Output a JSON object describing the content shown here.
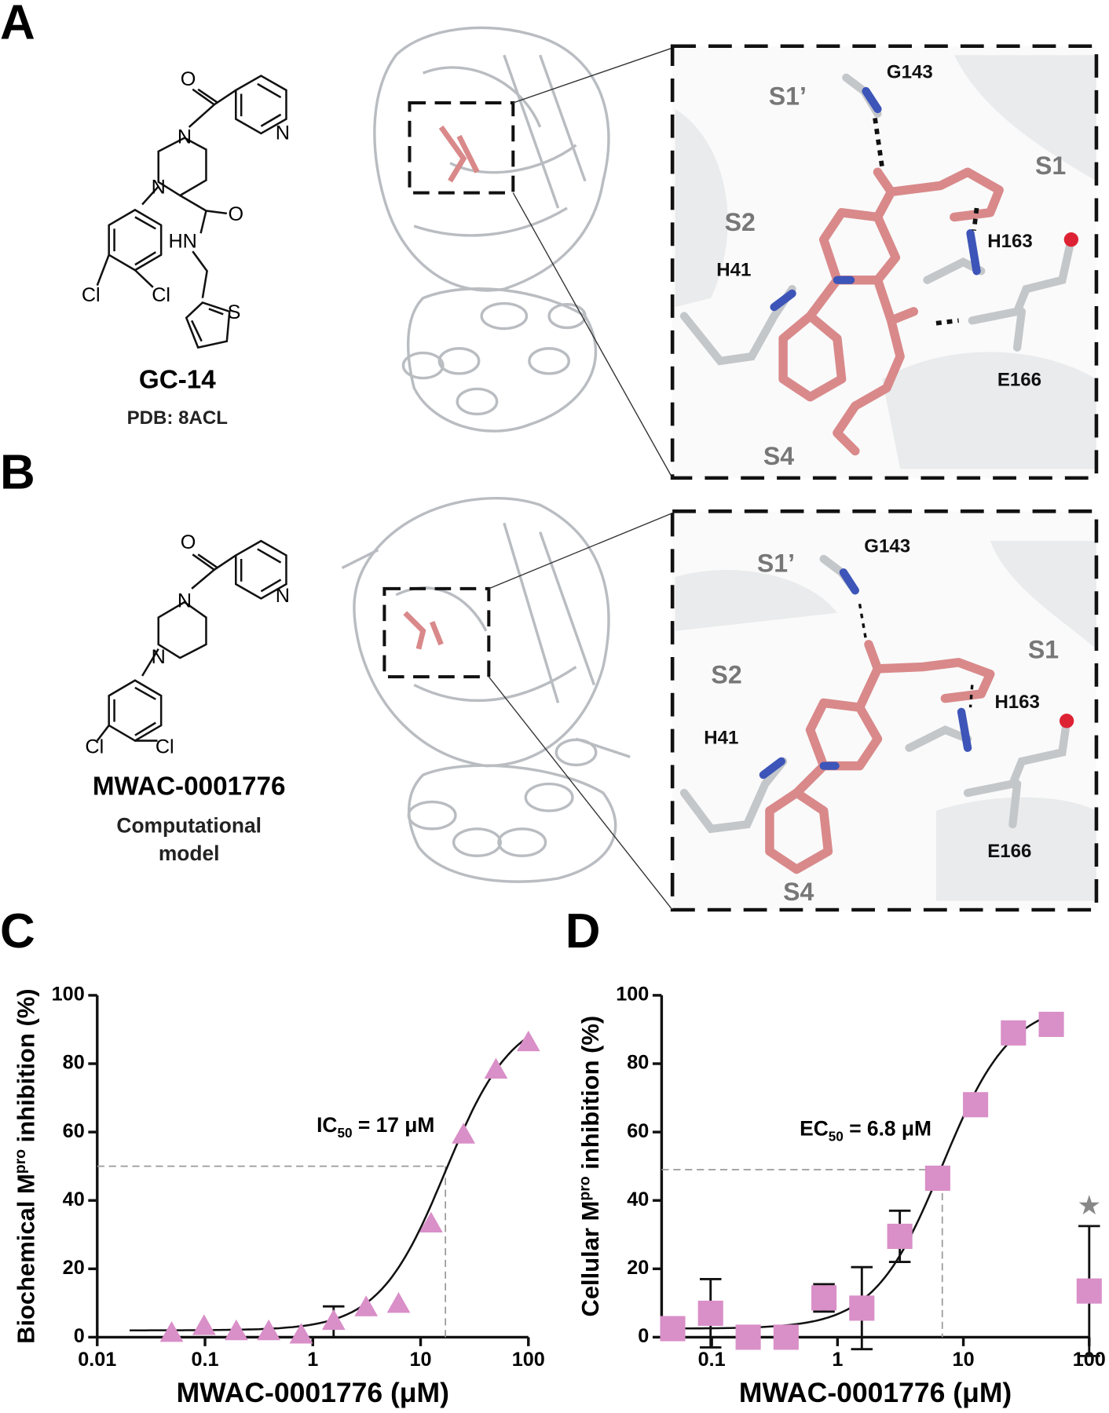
{
  "panels": {
    "a": {
      "label": "A",
      "compound": "GC-14",
      "subtitle": "PDB: 8ACL",
      "atoms": [
        "O",
        "N",
        "N",
        "N",
        "O",
        "HN",
        "Cl",
        "Cl",
        "S"
      ],
      "residues": [
        "S1’",
        "G143",
        "S1",
        "S2",
        "H163",
        "H41",
        "E166",
        "S4"
      ]
    },
    "b": {
      "label": "B",
      "compound": "MWAC-0001776",
      "subtitle": [
        "Computational",
        "model"
      ],
      "atoms": [
        "O",
        "N",
        "N",
        "N",
        "Cl",
        "Cl"
      ],
      "residues": [
        "S1’",
        "G143",
        "S1",
        "S2",
        "H163",
        "H41",
        "E166",
        "S4"
      ]
    }
  },
  "chart_data": [
    {
      "type": "scatter",
      "panel": "C",
      "marker": "triangle",
      "color": "#d98fc8",
      "xlabel": "MWAC-0001776 (μM)",
      "ylabel": {
        "text": "Biochemical M",
        "sup": "pro",
        "rest": " inhibition (%)"
      },
      "log_x": true,
      "xlim": [
        0.01,
        100
      ],
      "xticks": [
        0.01,
        0.1,
        1,
        10,
        100
      ],
      "ylim": [
        0,
        100
      ],
      "yticks": [
        0,
        20,
        40,
        60,
        80,
        100
      ],
      "x": [
        0.049,
        0.098,
        0.195,
        0.39,
        0.78,
        1.56,
        3.125,
        6.25,
        12.5,
        25,
        50,
        100
      ],
      "values": [
        1,
        3,
        1.5,
        1.5,
        0.5,
        4.5,
        8.5,
        9.5,
        33,
        59,
        78,
        86
      ],
      "errors": [
        null,
        null,
        null,
        null,
        null,
        4.5,
        null,
        null,
        null,
        null,
        null,
        null
      ],
      "fit": {
        "bottom": 2,
        "top": 95,
        "hill_slope": 1.4,
        "x_range": [
          0.02,
          100
        ]
      },
      "annotation": {
        "prefix": "IC",
        "sub": "50",
        "suffix": " = 17 μM",
        "value": 17,
        "half": 50
      }
    },
    {
      "type": "scatter",
      "panel": "D",
      "marker": "square",
      "color": "#d98fc8",
      "xlabel": "MWAC-0001776 (μM)",
      "ylabel": {
        "text": "Cellular M",
        "sup": "pro",
        "rest": " inhibition (%)"
      },
      "log_x": true,
      "xlim": [
        0.04,
        100
      ],
      "xticks": [
        0.1,
        1,
        10,
        100
      ],
      "ylim": [
        0,
        100
      ],
      "yticks": [
        0,
        20,
        40,
        60,
        80,
        100
      ],
      "x": [
        0.049,
        0.098,
        0.195,
        0.39,
        0.78,
        1.56,
        3.125,
        6.25,
        12.5,
        25,
        50,
        100
      ],
      "values": [
        2.5,
        7,
        0,
        0,
        11.5,
        8.5,
        29.5,
        46.5,
        68,
        89,
        91.5,
        13.5
      ],
      "errors": [
        null,
        10,
        null,
        null,
        4,
        12,
        7.5,
        null,
        null,
        null,
        null,
        19
      ],
      "fit": {
        "bottom": 2.5,
        "top": 98,
        "hill_slope": 1.6,
        "x_range": [
          0.05,
          50
        ]
      },
      "annotation": {
        "prefix": "EC",
        "sub": "50",
        "suffix": " = 6.8 μM",
        "value": 6.8,
        "half": 49
      },
      "mark": {
        "text": "★",
        "x": 100,
        "y": 38,
        "color": "#888888"
      }
    }
  ]
}
